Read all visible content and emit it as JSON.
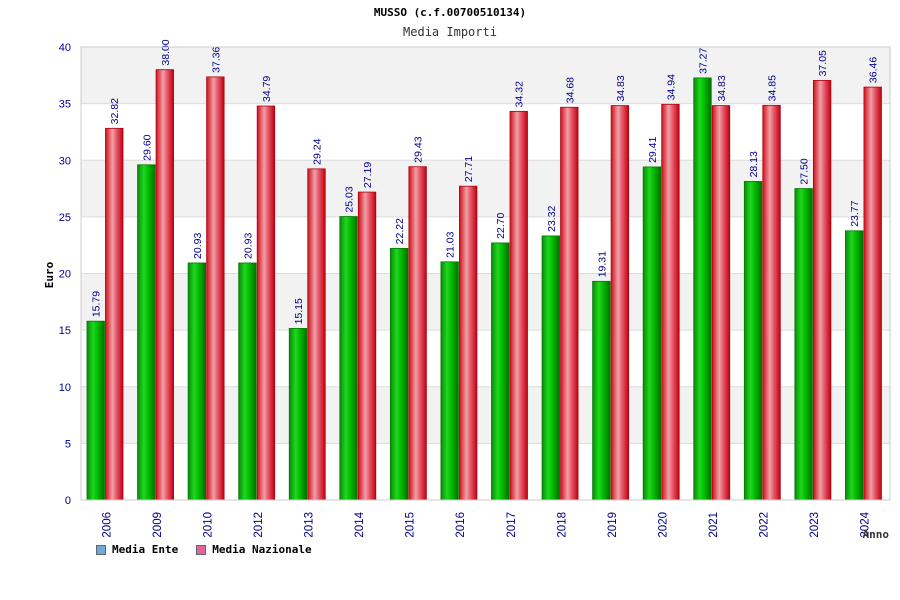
{
  "header": {
    "title": "MUSSO (c.f.00700510134)",
    "subtitle": "Media Importi"
  },
  "legend": {
    "items": [
      {
        "label": "Media Ente",
        "color": "#6fa8dc"
      },
      {
        "label": "Media Nazionale",
        "color": "#e06699"
      }
    ]
  },
  "colors": {
    "ente": "#00b400",
    "nazionale": "#e8202a",
    "axis_text": "#00008b"
  },
  "chart_data": {
    "type": "bar",
    "xlabel": "Anno",
    "ylabel": "Euro",
    "ylim": [
      0,
      40
    ],
    "yticks": [
      0,
      5,
      10,
      15,
      20,
      25,
      30,
      35,
      40
    ],
    "categories": [
      "2006",
      "2009",
      "2010",
      "2012",
      "2013",
      "2014",
      "2015",
      "2016",
      "2017",
      "2018",
      "2019",
      "2020",
      "2021",
      "2022",
      "2023",
      "2024"
    ],
    "series": [
      {
        "name": "Media Ente",
        "values": [
          15.79,
          29.6,
          20.93,
          20.93,
          15.15,
          25.03,
          22.22,
          21.03,
          22.7,
          23.32,
          19.31,
          29.41,
          37.27,
          28.13,
          27.5,
          23.77
        ]
      },
      {
        "name": "Media Nazionale",
        "values": [
          32.82,
          38.0,
          37.36,
          34.79,
          29.24,
          27.19,
          29.43,
          27.71,
          34.32,
          34.68,
          34.83,
          34.94,
          34.83,
          34.85,
          37.05,
          36.46
        ]
      }
    ],
    "value_labels": [
      [
        "15.79",
        "29.60",
        "20.93",
        "20.93",
        "15.15",
        "25.03",
        "22.22",
        "21.03",
        "22.70",
        "23.32",
        "19.31",
        "29.41",
        "37.27",
        "28.13",
        "27.50",
        "23.77"
      ],
      [
        "32.82",
        "38.00",
        "37.36",
        "34.79",
        "29.24",
        "27.19",
        "29.43",
        "27.71",
        "34.32",
        "34.68",
        "34.83",
        "34.94",
        "34.83",
        "34.85",
        "37.05",
        "36.46"
      ]
    ],
    "grid": true,
    "legend_position": "bottom-left"
  }
}
